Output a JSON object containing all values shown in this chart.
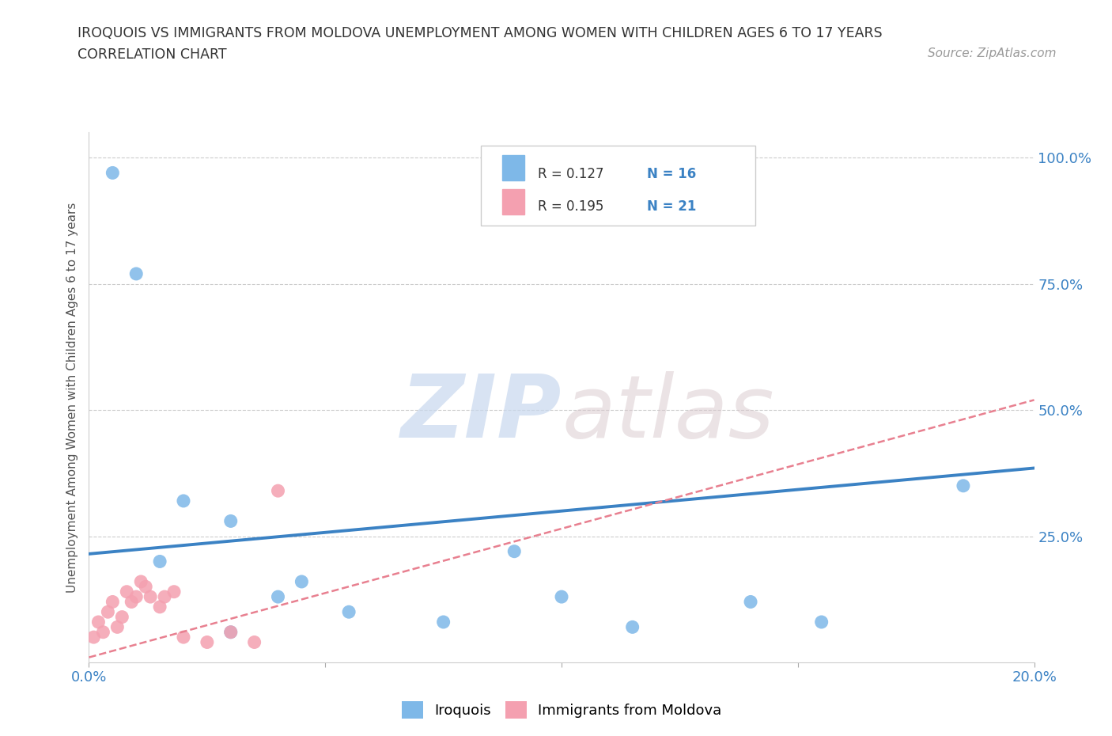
{
  "title": "IROQUOIS VS IMMIGRANTS FROM MOLDOVA UNEMPLOYMENT AMONG WOMEN WITH CHILDREN AGES 6 TO 17 YEARS",
  "subtitle": "CORRELATION CHART",
  "source": "Source: ZipAtlas.com",
  "ylabel": "Unemployment Among Women with Children Ages 6 to 17 years",
  "xlim": [
    0.0,
    0.2
  ],
  "ylim": [
    0.0,
    1.05
  ],
  "xticks": [
    0.0,
    0.05,
    0.1,
    0.15,
    0.2
  ],
  "xticklabels": [
    "0.0%",
    "",
    "",
    "",
    "20.0%"
  ],
  "yticks": [
    0.25,
    0.5,
    0.75,
    1.0
  ],
  "yticklabels": [
    "25.0%",
    "50.0%",
    "75.0%",
    "100.0%"
  ],
  "iroquois_x": [
    0.005,
    0.01,
    0.015,
    0.02,
    0.03,
    0.04,
    0.045,
    0.055,
    0.075,
    0.1,
    0.115,
    0.14,
    0.155,
    0.185,
    0.03,
    0.09
  ],
  "iroquois_y": [
    0.97,
    0.77,
    0.2,
    0.32,
    0.28,
    0.13,
    0.16,
    0.1,
    0.08,
    0.13,
    0.07,
    0.12,
    0.08,
    0.35,
    0.06,
    0.22
  ],
  "moldova_x": [
    0.001,
    0.002,
    0.003,
    0.004,
    0.005,
    0.006,
    0.007,
    0.008,
    0.009,
    0.01,
    0.011,
    0.012,
    0.013,
    0.015,
    0.016,
    0.018,
    0.02,
    0.025,
    0.03,
    0.035,
    0.04
  ],
  "moldova_y": [
    0.05,
    0.08,
    0.06,
    0.1,
    0.12,
    0.07,
    0.09,
    0.14,
    0.12,
    0.13,
    0.16,
    0.15,
    0.13,
    0.11,
    0.13,
    0.14,
    0.05,
    0.04,
    0.06,
    0.04,
    0.34
  ],
  "iroquois_color": "#7EB8E8",
  "moldova_color": "#F4A0B0",
  "iroquois_line_color": "#3B82C4",
  "moldova_line_color": "#E88090",
  "iroquois_R": 0.127,
  "iroquois_N": 16,
  "moldova_R": 0.195,
  "moldova_N": 21,
  "legend_label_iroquois": "Iroquois",
  "legend_label_moldova": "Immigrants from Moldova",
  "watermark_zip": "ZIP",
  "watermark_atlas": "atlas",
  "background_color": "#ffffff",
  "grid_color": "#cccccc",
  "iroquois_line_x0": 0.0,
  "iroquois_line_y0": 0.215,
  "iroquois_line_x1": 0.2,
  "iroquois_line_y1": 0.385,
  "moldova_line_x0": 0.0,
  "moldova_line_y0": 0.01,
  "moldova_line_x1": 0.2,
  "moldova_line_y1": 0.52
}
